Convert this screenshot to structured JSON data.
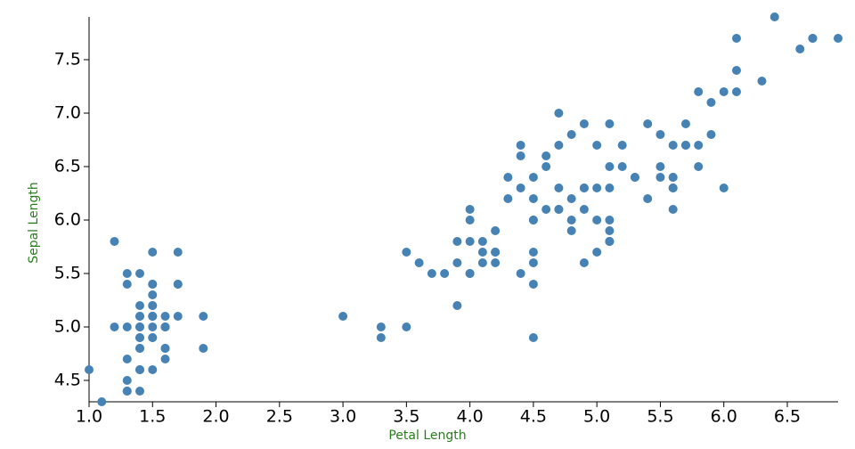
{
  "chart_data": {
    "type": "scatter",
    "x_label": "Petal Length",
    "y_label": "Sepal Length",
    "color": "#4682b4",
    "label_color": "#2a7d1f",
    "grid": false,
    "x": [
      1.4,
      1.4,
      1.3,
      1.5,
      1.4,
      1.7,
      1.4,
      1.5,
      1.4,
      1.5,
      1.5,
      1.6,
      1.4,
      1.1,
      1.2,
      1.5,
      1.3,
      1.4,
      1.7,
      1.5,
      1.7,
      1.5,
      1.0,
      1.7,
      1.9,
      1.6,
      1.6,
      1.5,
      1.4,
      1.6,
      1.6,
      1.5,
      1.5,
      1.4,
      1.5,
      1.2,
      1.3,
      1.4,
      1.3,
      1.5,
      1.3,
      1.3,
      1.3,
      1.6,
      1.9,
      1.4,
      1.6,
      1.4,
      1.5,
      1.4,
      4.7,
      4.5,
      4.9,
      4.0,
      4.6,
      4.5,
      4.7,
      3.3,
      4.6,
      3.9,
      3.5,
      4.2,
      4.0,
      4.7,
      3.6,
      4.4,
      4.5,
      4.1,
      4.5,
      3.9,
      4.8,
      4.0,
      4.9,
      4.7,
      4.3,
      4.4,
      4.8,
      5.0,
      4.5,
      3.5,
      3.8,
      3.7,
      3.9,
      5.1,
      4.5,
      4.5,
      4.7,
      4.4,
      4.1,
      4.0,
      4.4,
      4.6,
      4.0,
      3.3,
      4.2,
      4.2,
      4.2,
      4.3,
      3.0,
      4.1,
      6.0,
      5.1,
      5.9,
      5.6,
      5.8,
      6.6,
      4.5,
      6.3,
      5.8,
      6.1,
      5.1,
      5.3,
      5.5,
      5.0,
      5.1,
      5.3,
      5.5,
      6.7,
      6.9,
      5.0,
      5.7,
      4.9,
      6.7,
      4.9,
      5.7,
      6.0,
      4.8,
      4.9,
      5.6,
      5.8,
      6.1,
      6.4,
      5.6,
      5.1,
      5.6,
      6.1,
      5.6,
      5.5,
      4.8,
      5.4,
      5.6,
      5.1,
      5.1,
      5.9,
      5.7,
      5.2,
      5.0,
      5.2,
      5.4,
      5.1
    ],
    "values": [
      5.1,
      4.9,
      4.7,
      4.6,
      5.0,
      5.4,
      4.6,
      5.0,
      4.4,
      4.9,
      5.4,
      4.8,
      4.8,
      4.3,
      5.8,
      5.7,
      5.4,
      5.1,
      5.7,
      5.1,
      5.4,
      5.1,
      4.6,
      5.1,
      4.8,
      5.0,
      5.0,
      5.2,
      5.2,
      4.7,
      4.8,
      5.4,
      5.2,
      5.5,
      4.9,
      5.0,
      5.5,
      4.9,
      4.4,
      5.1,
      5.0,
      4.5,
      4.4,
      5.0,
      5.1,
      4.8,
      5.1,
      4.6,
      5.3,
      5.0,
      7.0,
      6.4,
      6.9,
      5.5,
      6.5,
      5.7,
      6.3,
      4.9,
      6.6,
      5.2,
      5.0,
      5.9,
      6.0,
      6.1,
      5.6,
      6.7,
      5.6,
      5.8,
      6.2,
      5.6,
      5.9,
      6.1,
      6.3,
      6.1,
      6.4,
      6.6,
      6.8,
      6.7,
      6.0,
      5.7,
      5.5,
      5.5,
      5.8,
      6.0,
      5.4,
      6.0,
      6.7,
      6.3,
      5.6,
      5.5,
      5.5,
      6.1,
      5.8,
      5.0,
      5.6,
      5.7,
      5.7,
      6.2,
      5.1,
      5.7,
      6.3,
      5.8,
      7.1,
      6.3,
      6.5,
      7.6,
      4.9,
      7.3,
      6.7,
      7.2,
      6.5,
      6.4,
      6.8,
      5.7,
      5.8,
      6.4,
      6.5,
      7.7,
      7.7,
      6.0,
      6.9,
      5.6,
      7.7,
      6.3,
      6.7,
      7.2,
      6.2,
      6.1,
      6.4,
      7.2,
      7.4,
      7.9,
      6.4,
      6.3,
      6.1,
      7.7,
      6.3,
      6.4,
      6.0,
      6.9,
      6.7,
      6.9,
      5.8,
      6.8,
      6.7,
      6.7,
      6.3,
      6.5,
      6.2,
      5.9
    ],
    "xlim": [
      1.0,
      6.9
    ],
    "xticks": [
      {
        "value": 1,
        "label": "1.0"
      },
      1.5,
      {
        "value": 2,
        "label": "2.0"
      },
      2.5,
      {
        "value": 3,
        "label": "3.0"
      },
      3.5,
      {
        "value": 4,
        "label": "4.0"
      },
      4.5,
      {
        "value": 5,
        "label": "5.0"
      },
      5.5,
      {
        "value": 6,
        "label": "6.0"
      },
      6.5
    ],
    "ylim": [
      4.3,
      7.9
    ],
    "yticks": [
      4.5,
      {
        "value": 5,
        "label": "5.0"
      },
      5.5,
      {
        "value": 6,
        "label": "6.0"
      },
      6.5,
      {
        "value": 7,
        "label": "7.0"
      },
      7.5
    ]
  }
}
